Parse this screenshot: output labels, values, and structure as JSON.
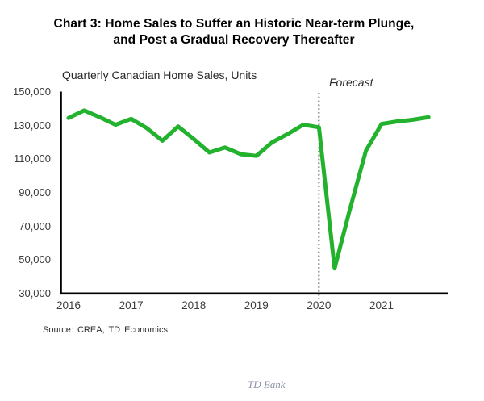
{
  "page": {
    "title_line1": "Chart 3: Home Sales to Suffer an Historic Near-term Plunge,",
    "title_line2": "and Post a Gradual Recovery Thereafter",
    "footer_brand": "TD Bank"
  },
  "chart_data": {
    "type": "line",
    "title": "Chart 3: Home Sales to Suffer an Historic Near-term Plunge, and Post a Gradual Recovery Thereafter",
    "subtitle": "Quarterly Canadian Home Sales, Units",
    "forecast_label": "Forecast",
    "source": "Source: CREA,  TD Economics",
    "line_color": "#22b22e",
    "x": [
      "2016 Q1",
      "2016 Q2",
      "2016 Q3",
      "2016 Q4",
      "2017 Q1",
      "2017 Q2",
      "2017 Q3",
      "2017 Q4",
      "2018 Q1",
      "2018 Q2",
      "2018 Q3",
      "2018 Q4",
      "2019 Q1",
      "2019 Q2",
      "2019 Q3",
      "2019 Q4",
      "2020 Q1",
      "2020 Q2",
      "2020 Q3",
      "2020 Q4",
      "2021 Q1",
      "2021 Q2",
      "2021 Q3",
      "2021 Q4"
    ],
    "values": [
      134500,
      139000,
      135000,
      130500,
      134000,
      128500,
      121000,
      129500,
      122000,
      114000,
      117000,
      113000,
      112000,
      120000,
      125000,
      130500,
      129000,
      45000,
      81000,
      115000,
      131000,
      132500,
      133500,
      135000
    ],
    "xticks": [
      "2016",
      "2017",
      "2018",
      "2019",
      "2020",
      "2021"
    ],
    "yticks": [
      {
        "label": "150,000",
        "value": 150000
      },
      {
        "label": "130,000",
        "value": 130000
      },
      {
        "label": "110,000",
        "value": 110000
      },
      {
        "label": "90,000",
        "value": 90000
      },
      {
        "label": "70,000",
        "value": 70000
      },
      {
        "label": "50,000",
        "value": 50000
      },
      {
        "label": "30,000",
        "value": 30000
      }
    ],
    "ylim": [
      30000,
      150000
    ],
    "forecast_index": 16,
    "grid": false,
    "legend": false
  }
}
